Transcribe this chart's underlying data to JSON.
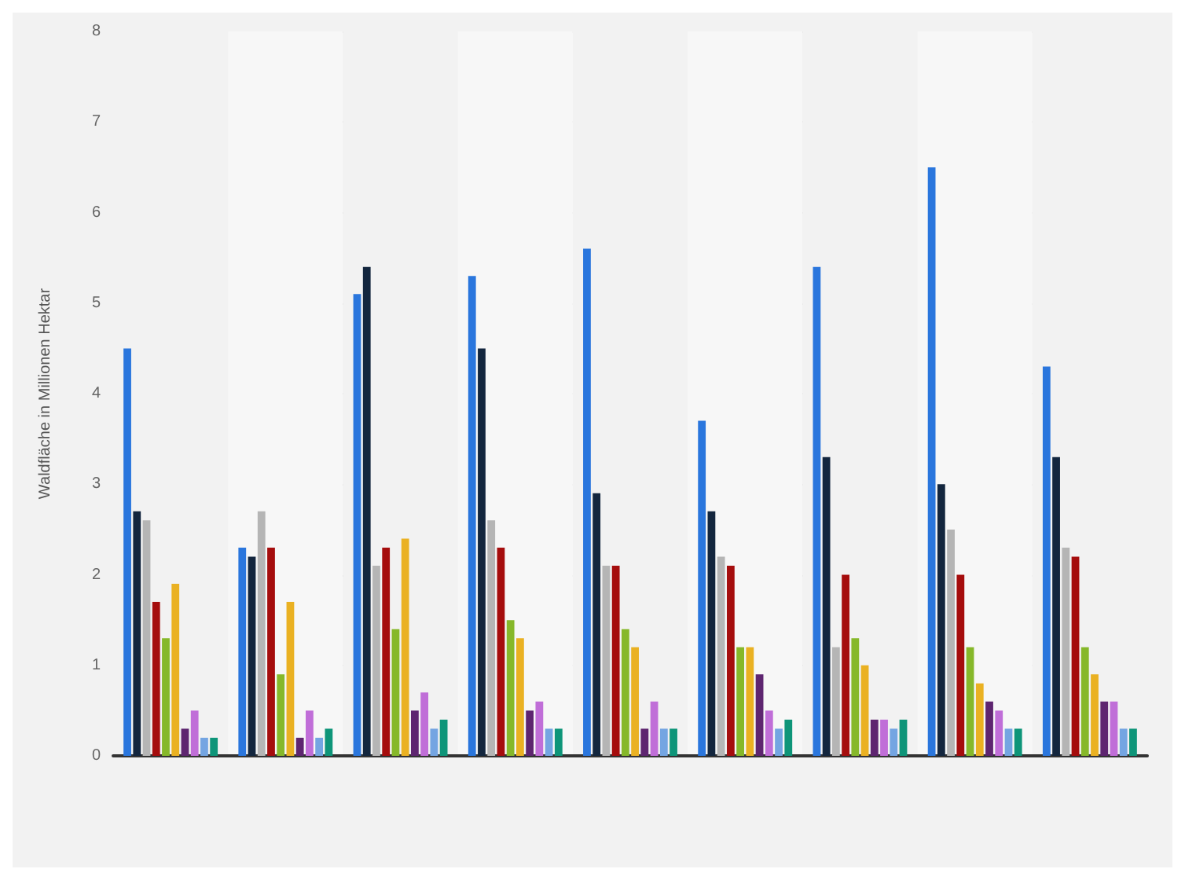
{
  "chart_data": {
    "type": "bar",
    "ylabel": "Waldfläche in Millionen Hektar",
    "categories": [
      null,
      null,
      null,
      null,
      null,
      null,
      null,
      null,
      null
    ],
    "series": [
      {
        "color": "#2a76dd",
        "values": [
          4.5,
          2.3,
          5.1,
          5.3,
          5.6,
          3.7,
          5.4,
          6.5,
          4.3
        ]
      },
      {
        "color": "#13263e",
        "values": [
          2.7,
          2.2,
          5.4,
          4.5,
          2.9,
          2.7,
          3.3,
          3.0,
          3.3
        ]
      },
      {
        "color": "#b5b5b5",
        "values": [
          2.6,
          2.7,
          2.1,
          2.6,
          2.1,
          2.2,
          1.2,
          2.5,
          2.3
        ]
      },
      {
        "color": "#a50d0d",
        "values": [
          1.7,
          2.3,
          2.3,
          2.3,
          2.1,
          2.1,
          2.0,
          2.0,
          2.2
        ]
      },
      {
        "color": "#86b82a",
        "values": [
          1.3,
          0.9,
          1.4,
          1.5,
          1.4,
          1.2,
          1.3,
          1.2,
          1.2
        ]
      },
      {
        "color": "#eab122",
        "values": [
          1.9,
          1.7,
          2.4,
          1.3,
          1.2,
          1.2,
          1.0,
          0.8,
          0.9
        ]
      },
      {
        "color": "#5e2570",
        "values": [
          0.3,
          0.2,
          0.5,
          0.5,
          0.3,
          0.9,
          0.4,
          0.6,
          0.6
        ]
      },
      {
        "color": "#c06ed8",
        "values": [
          0.5,
          0.5,
          0.7,
          0.6,
          0.6,
          0.5,
          0.4,
          0.5,
          0.6
        ]
      },
      {
        "color": "#74a5e2",
        "values": [
          0.2,
          0.2,
          0.3,
          0.3,
          0.3,
          0.3,
          0.3,
          0.3,
          0.3
        ]
      },
      {
        "color": "#0e9579",
        "values": [
          0.2,
          0.3,
          0.4,
          0.3,
          0.3,
          0.4,
          0.4,
          0.3,
          0.3
        ]
      }
    ],
    "ylim": [
      0,
      8
    ],
    "yticks": [
      0,
      1,
      2,
      3,
      4,
      5,
      6,
      7,
      8
    ],
    "grid": "y"
  }
}
